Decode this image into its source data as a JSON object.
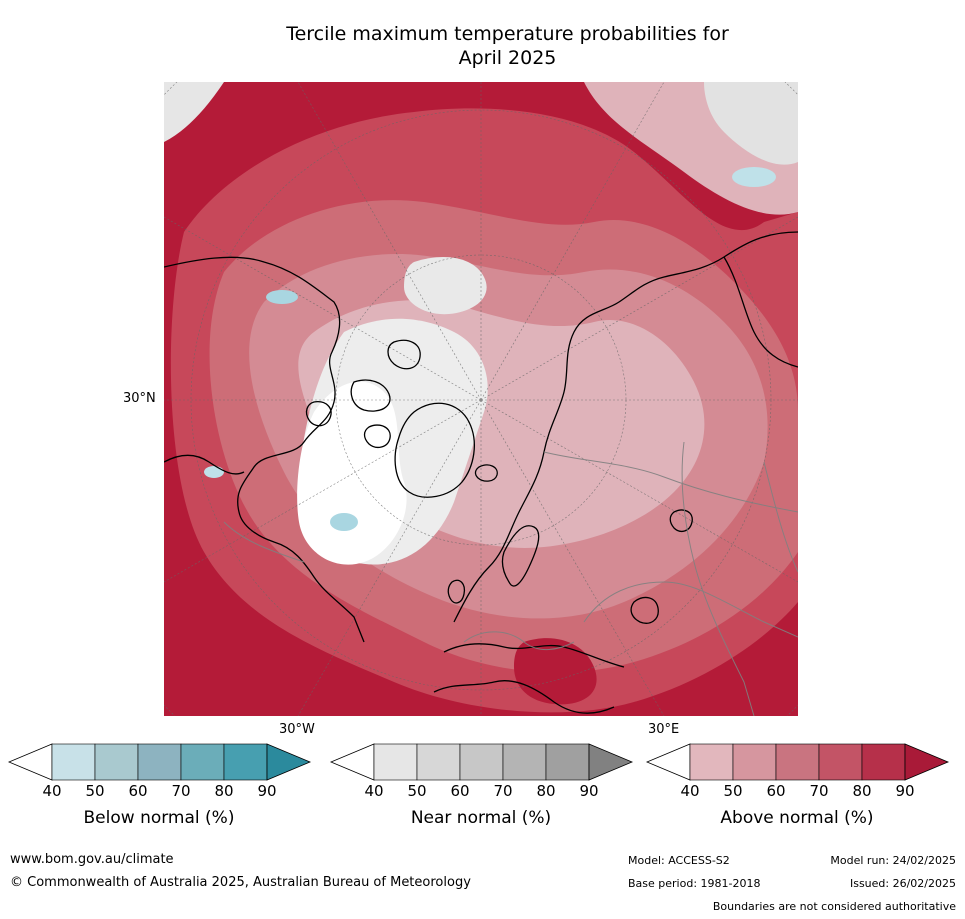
{
  "title": {
    "line1": "Tercile maximum temperature probabilities for",
    "line2": "April 2025"
  },
  "map": {
    "projection": "north-polar-stereographic",
    "lat_label": "30°N",
    "lon_labels": [
      "30°W",
      "30°E"
    ],
    "dominant_category": "Above normal",
    "colors": {
      "above_90": "#b41b38",
      "above_80": "#c7485a",
      "above_70": "#cd6d77",
      "above_60": "#d48b94",
      "above_50": "#dfb3ba",
      "near": "#e2e2e2",
      "below": "#a9d6e1",
      "coast": "#000000",
      "border": "#808080",
      "grid": "#666666"
    }
  },
  "colorbars": [
    {
      "label": "Below normal (%)",
      "ticks": [
        "40",
        "50",
        "60",
        "70",
        "80",
        "90"
      ],
      "colors": [
        "#ffffff",
        "#c8e1e8",
        "#a9c9cf",
        "#8db3c0",
        "#6badb9",
        "#479fb0",
        "#2b8a9d"
      ]
    },
    {
      "label": "Near normal (%)",
      "ticks": [
        "40",
        "50",
        "60",
        "70",
        "80",
        "90"
      ],
      "colors": [
        "#ffffff",
        "#e6e6e6",
        "#d7d7d7",
        "#c7c7c7",
        "#b4b4b4",
        "#a0a0a0",
        "#818181"
      ]
    },
    {
      "label": "Above normal (%)",
      "ticks": [
        "40",
        "50",
        "60",
        "70",
        "80",
        "90"
      ],
      "colors": [
        "#ffffff",
        "#e2b7bd",
        "#d6969f",
        "#c97480",
        "#c35466",
        "#b6304a",
        "#a91a38"
      ]
    }
  ],
  "footer": {
    "website": "www.bom.gov.au/climate",
    "copyright": "© Commonwealth of Australia 2025, Australian Bureau of Meteorology",
    "model": "Model: ACCESS-S2",
    "model_run": "Model run: 24/02/2025",
    "base_period": "Base period: 1981-2018",
    "issued": "Issued: 26/02/2025",
    "disclaimer": "Boundaries are not considered authoritative"
  }
}
